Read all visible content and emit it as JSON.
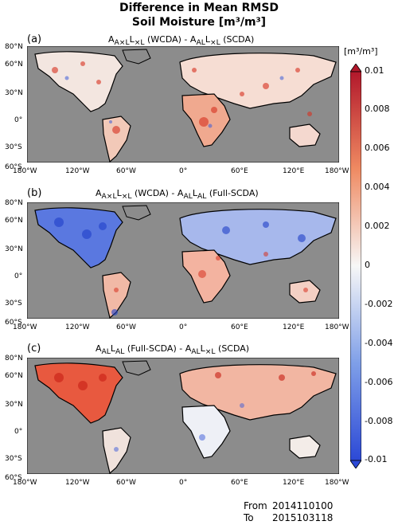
{
  "title_line1": "Difference in Mean RMSD",
  "title_line2": "Soil Moisture [m³/m³]",
  "panels": [
    {
      "label": "(a)",
      "title": "A A×L L×L (WCDA) - A AL L L×L (SCDA)"
    },
    {
      "label": "(b)",
      "title": "A A×L L×L (WCDA) - A AL L AL (Full-SCDA)"
    },
    {
      "label": "(c)",
      "title": "A AL L AL (Full-SCDA) - A AL L L×L (SCDA)"
    }
  ],
  "lat_ticks": [
    "80°N",
    "60°N",
    "30°N",
    "0°",
    "30°S",
    "60°S"
  ],
  "lon_ticks": [
    "180°W",
    "120°W",
    "60°W",
    "0°",
    "60°E",
    "120°E",
    "180°W"
  ],
  "colorbar": {
    "unit": "[m³/m³]",
    "ticks": [
      "0.01",
      "0.008",
      "0.006",
      "0.004",
      "0.002",
      "0",
      "-0.002",
      "-0.004",
      "-0.006",
      "-0.008",
      "-0.01"
    ],
    "colors": {
      "high": "#b2182b",
      "mid": "#f7f7f7",
      "low": "#2c49d6"
    }
  },
  "footer": {
    "from_label": "From",
    "from_value": "2014110100",
    "to_label": "To",
    "to_value": "2015103118"
  }
}
